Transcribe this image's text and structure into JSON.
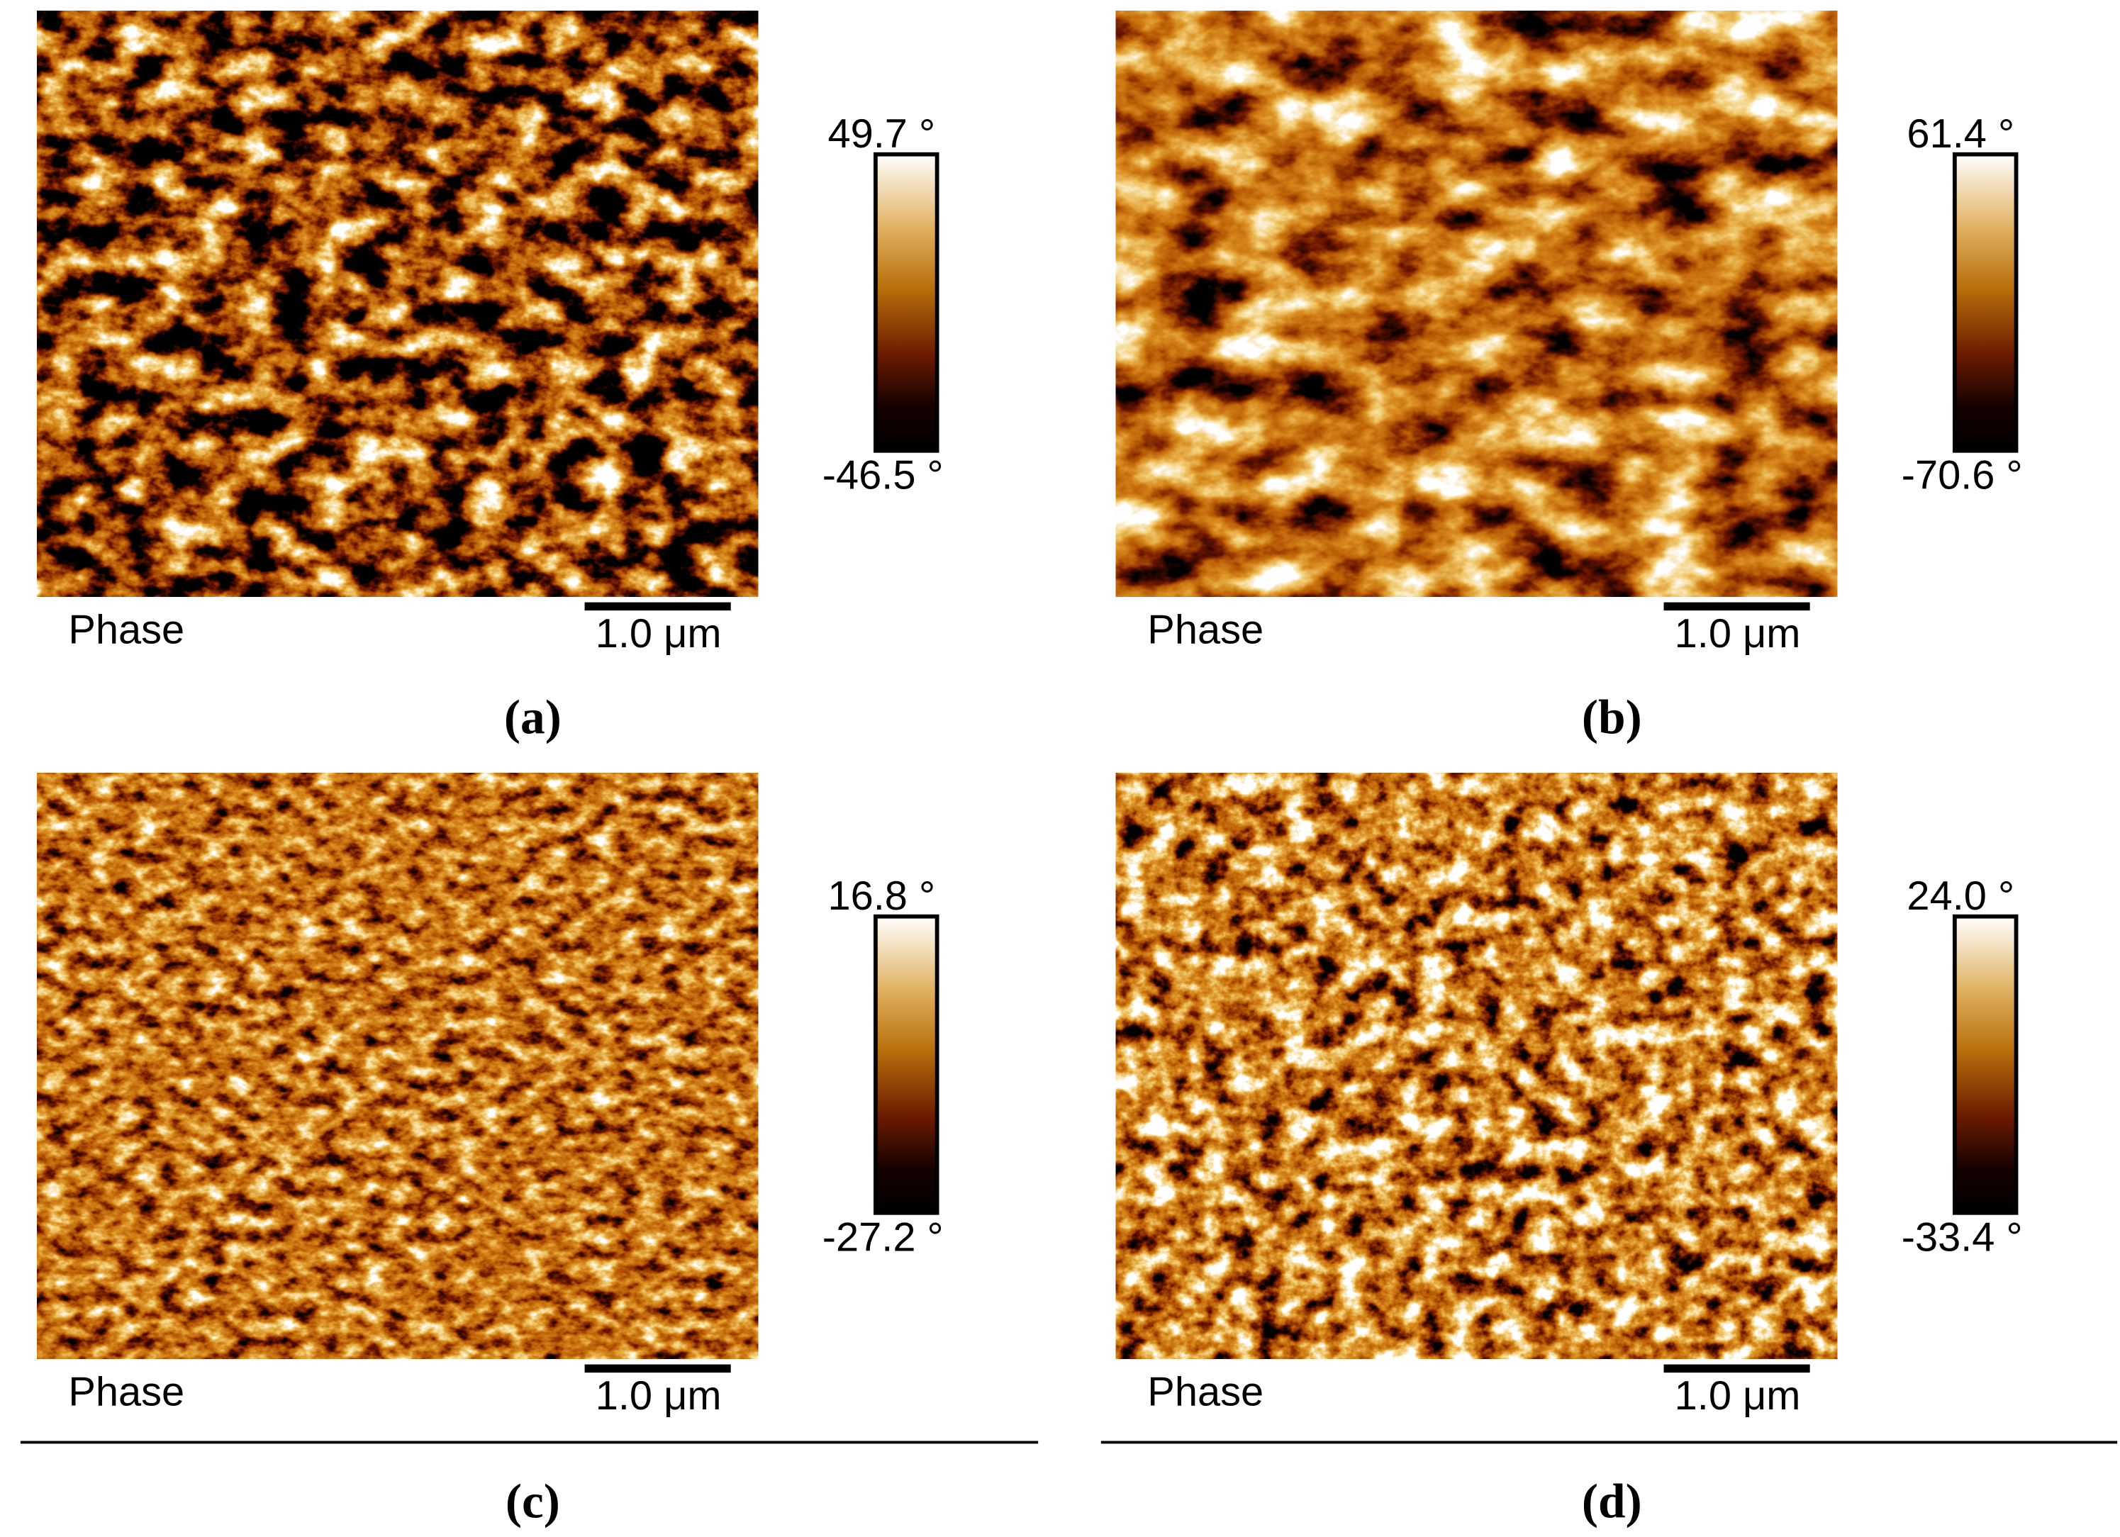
{
  "panels": [
    {
      "label": "(a)",
      "image_caption": "Phase",
      "scale_bar": "1.0 μm",
      "colorbar_max": "49.7 °",
      "colorbar_min": "-46.5 °"
    },
    {
      "label": "(b)",
      "image_caption": "Phase",
      "scale_bar": "1.0 μm",
      "colorbar_max": "61.4 °",
      "colorbar_min": "-70.6 °"
    },
    {
      "label": "(c)",
      "image_caption": "Phase",
      "scale_bar": "1.0 μm",
      "colorbar_max": "16.8 °",
      "colorbar_min": "-27.2 °"
    },
    {
      "label": "(d)",
      "image_caption": "Phase",
      "scale_bar": "1.0 μm",
      "colorbar_max": "24.0 °",
      "colorbar_min": "-33.4 °"
    }
  ]
}
